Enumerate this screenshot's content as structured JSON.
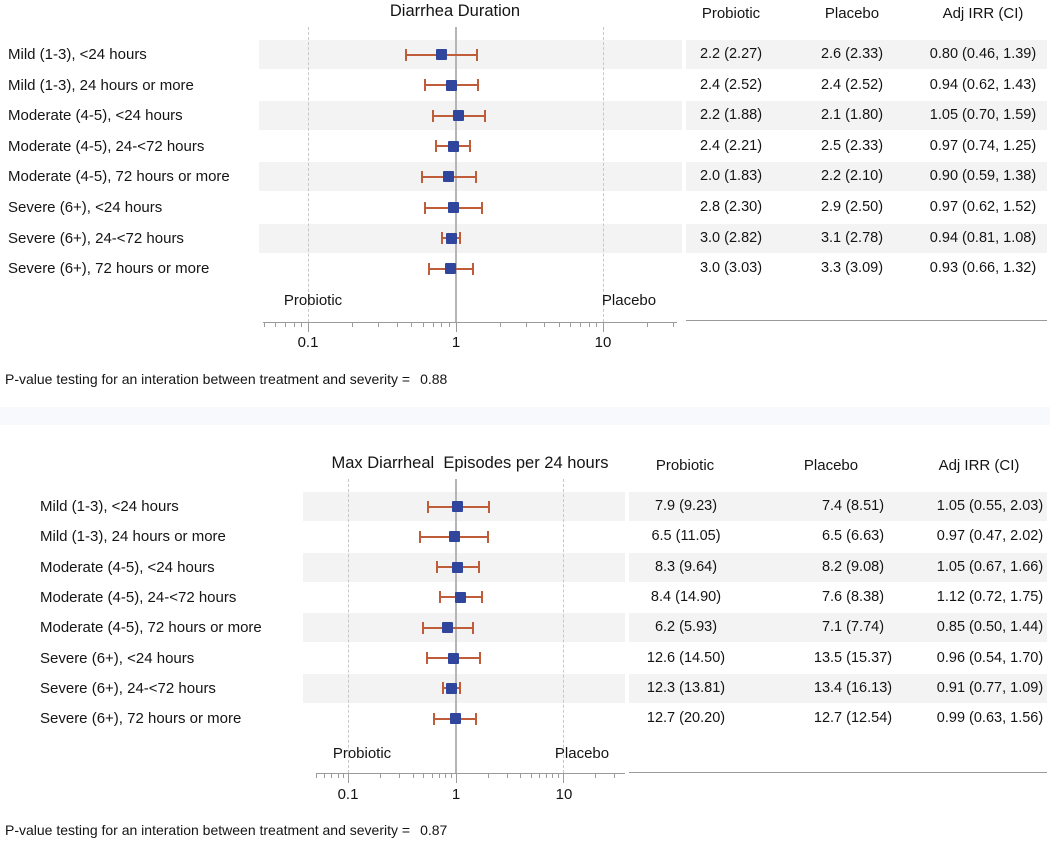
{
  "colors": {
    "marker": "#30459c",
    "ci_bar": "#bf5c3a",
    "row_stripe": "#f3f3f3",
    "reference_line": "#b5b5b5",
    "dashed_gridline": "#c7c7c7",
    "axis": "#9b9b9b",
    "separator_band": "#f8f9fd",
    "text": "#141414"
  },
  "chart_data": [
    {
      "type": "forest",
      "title": "Diarrhea Duration",
      "xscale": "log",
      "xlim": [
        0.05,
        32
      ],
      "xticks": [
        "0.1",
        "1",
        "10"
      ],
      "reference_value": 1,
      "grid_dashed_at": [
        0.1,
        10
      ],
      "group_labels": {
        "left": "Probiotic",
        "right": "Placebo"
      },
      "table_columns": [
        "Probiotic",
        "Placebo",
        "Adj IRR (CI)"
      ],
      "rows": [
        {
          "label": "Mild (1-3), <24 hours",
          "probiotic": "2.2 (2.27)",
          "placebo": "2.6 (2.33)",
          "adj_irr": "0.80 (0.46, 1.39)",
          "est": 0.8,
          "lo": 0.46,
          "hi": 1.39
        },
        {
          "label": "Mild (1-3), 24 hours or more",
          "probiotic": "2.4 (2.52)",
          "placebo": "2.4 (2.52)",
          "adj_irr": "0.94 (0.62, 1.43)",
          "est": 0.94,
          "lo": 0.62,
          "hi": 1.43
        },
        {
          "label": "Moderate (4-5), <24 hours",
          "probiotic": "2.2 (1.88)",
          "placebo": "2.1 (1.80)",
          "adj_irr": "1.05 (0.70, 1.59)",
          "est": 1.05,
          "lo": 0.7,
          "hi": 1.59
        },
        {
          "label": "Moderate (4-5), 24-<72 hours",
          "probiotic": "2.4 (2.21)",
          "placebo": "2.5 (2.33)",
          "adj_irr": "0.97 (0.74, 1.25)",
          "est": 0.97,
          "lo": 0.74,
          "hi": 1.25
        },
        {
          "label": "Moderate (4-5), 72 hours or more",
          "probiotic": "2.0 (1.83)",
          "placebo": "2.2 (2.10)",
          "adj_irr": "0.90 (0.59, 1.38)",
          "est": 0.9,
          "lo": 0.59,
          "hi": 1.38
        },
        {
          "label": "Severe (6+), <24 hours",
          "probiotic": "2.8 (2.30)",
          "placebo": "2.9 (2.50)",
          "adj_irr": "0.97 (0.62, 1.52)",
          "est": 0.97,
          "lo": 0.62,
          "hi": 1.52
        },
        {
          "label": "Severe (6+), 24-<72 hours",
          "probiotic": "3.0 (2.82)",
          "placebo": "3.1 (2.78)",
          "adj_irr": "0.94 (0.81, 1.08)",
          "est": 0.94,
          "lo": 0.81,
          "hi": 1.08
        },
        {
          "label": "Severe (6+), 72 hours or more",
          "probiotic": "3.0 (3.03)",
          "placebo": "3.3 (3.09)",
          "adj_irr": "0.93 (0.66, 1.32)",
          "est": 0.93,
          "lo": 0.66,
          "hi": 1.32
        }
      ],
      "footnote_label": "P-value testing for an interation between treatment and severity =",
      "footnote_value": "0.88"
    },
    {
      "type": "forest",
      "title": "Max Diarrheal  Episodes per 24 hours",
      "xscale": "log",
      "xlim": [
        0.05,
        37
      ],
      "xticks": [
        "0.1",
        "1",
        "10"
      ],
      "reference_value": 1,
      "grid_dashed_at": [
        0.1,
        10
      ],
      "group_labels": {
        "left": "Probiotic",
        "right": "Placebo"
      },
      "table_columns": [
        "Probiotic",
        "Placebo",
        "Adj IRR (CI)"
      ],
      "rows": [
        {
          "label": "Mild (1-3), <24 hours",
          "probiotic": "7.9 (9.23)",
          "placebo": "7.4 (8.51)",
          "adj_irr": "1.05 (0.55, 2.03)",
          "est": 1.05,
          "lo": 0.55,
          "hi": 2.03
        },
        {
          "label": "Mild (1-3), 24 hours or more",
          "probiotic": "6.5 (11.05)",
          "placebo": "6.5 (6.63)",
          "adj_irr": "0.97 (0.47, 2.02)",
          "est": 0.97,
          "lo": 0.47,
          "hi": 2.02
        },
        {
          "label": "Moderate (4-5), <24 hours",
          "probiotic": "8.3 (9.64)",
          "placebo": "8.2 (9.08)",
          "adj_irr": "1.05 (0.67, 1.66)",
          "est": 1.05,
          "lo": 0.67,
          "hi": 1.66
        },
        {
          "label": "Moderate (4-5), 24-<72 hours",
          "probiotic": "8.4 (14.90)",
          "placebo": "7.6 (8.38)",
          "adj_irr": "1.12 (0.72, 1.75)",
          "est": 1.12,
          "lo": 0.72,
          "hi": 1.75
        },
        {
          "label": "Moderate (4-5), 72 hours or more",
          "probiotic": "6.2 (5.93)",
          "placebo": "7.1 (7.74)",
          "adj_irr": "0.85 (0.50, 1.44)",
          "est": 0.85,
          "lo": 0.5,
          "hi": 1.44
        },
        {
          "label": "Severe (6+), <24 hours",
          "probiotic": "12.6 (14.50)",
          "placebo": "13.5 (15.37)",
          "adj_irr": "0.96 (0.54, 1.70)",
          "est": 0.96,
          "lo": 0.54,
          "hi": 1.7
        },
        {
          "label": "Severe (6+), 24-<72 hours",
          "probiotic": "12.3 (13.81)",
          "placebo": "13.4 (16.13)",
          "adj_irr": "0.91 (0.77, 1.09)",
          "est": 0.91,
          "lo": 0.77,
          "hi": 1.09
        },
        {
          "label": "Severe (6+), 72 hours or more",
          "probiotic": "12.7 (20.20)",
          "placebo": "12.7 (12.54)",
          "adj_irr": "0.99 (0.63, 1.56)",
          "est": 0.99,
          "lo": 0.63,
          "hi": 1.56
        }
      ],
      "footnote_label": "P-value testing for an interation between treatment and severity =",
      "footnote_value": "0.87"
    }
  ]
}
